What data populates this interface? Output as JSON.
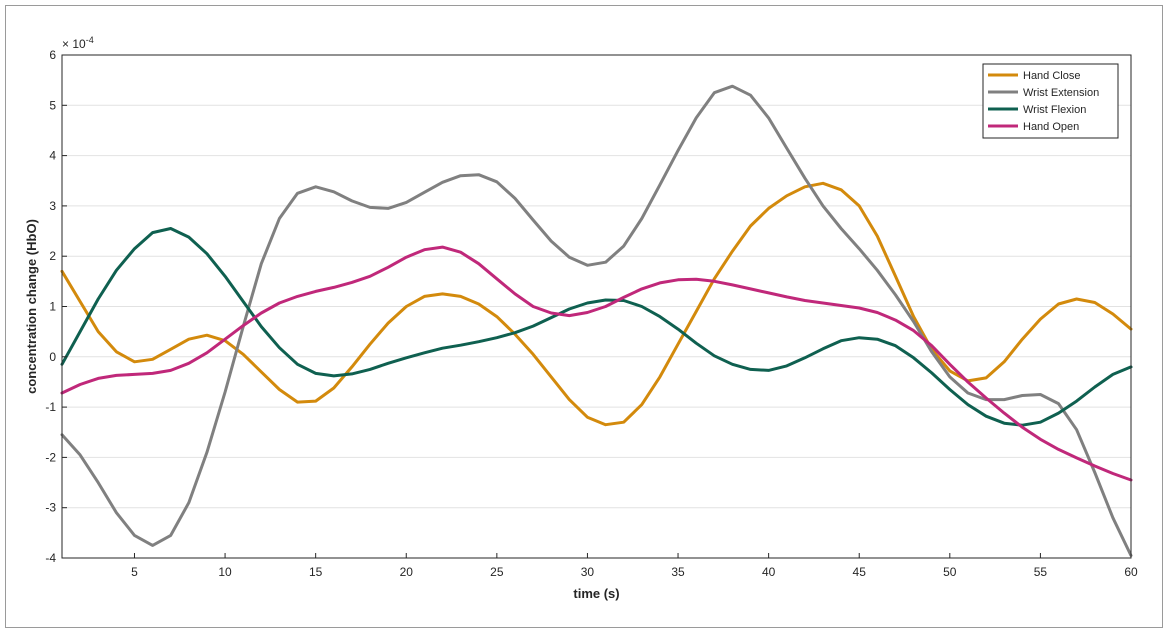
{
  "chart_data": {
    "type": "line",
    "xlabel": "time (s)",
    "ylabel": "concentration change (HbO)",
    "exponent_label": "× 10^-4",
    "xlim": [
      1,
      60
    ],
    "ylim": [
      -4,
      6
    ],
    "xticks": [
      5,
      10,
      15,
      20,
      25,
      30,
      35,
      40,
      45,
      50,
      55,
      60
    ],
    "yticks": [
      -4,
      -3,
      -2,
      -1,
      0,
      1,
      2,
      3,
      4,
      5,
      6
    ],
    "grid": "horizontal",
    "legend_position": "top-right",
    "x": [
      1,
      2,
      3,
      4,
      5,
      6,
      7,
      8,
      9,
      10,
      11,
      12,
      13,
      14,
      15,
      16,
      17,
      18,
      19,
      20,
      21,
      22,
      23,
      24,
      25,
      26,
      27,
      28,
      29,
      30,
      31,
      32,
      33,
      34,
      35,
      36,
      37,
      38,
      39,
      40,
      41,
      42,
      43,
      44,
      45,
      46,
      47,
      48,
      49,
      50,
      51,
      52,
      53,
      54,
      55,
      56,
      57,
      58,
      59,
      60
    ],
    "series": [
      {
        "name": "Hand Close",
        "color": "#d38a0c",
        "values": [
          1.7,
          1.1,
          0.5,
          0.1,
          -0.1,
          -0.05,
          0.15,
          0.35,
          0.43,
          0.32,
          0.05,
          -0.3,
          -0.65,
          -0.9,
          -0.88,
          -0.62,
          -0.2,
          0.25,
          0.67,
          1.0,
          1.2,
          1.25,
          1.2,
          1.05,
          0.8,
          0.45,
          0.05,
          -0.4,
          -0.85,
          -1.2,
          -1.35,
          -1.3,
          -0.95,
          -0.4,
          0.25,
          0.9,
          1.55,
          2.1,
          2.6,
          2.95,
          3.2,
          3.38,
          3.45,
          3.32,
          3.0,
          2.4,
          1.6,
          0.8,
          0.15,
          -0.28,
          -0.48,
          -0.42,
          -0.1,
          0.35,
          0.75,
          1.05,
          1.15,
          1.08,
          0.85,
          0.55
        ]
      },
      {
        "name": "Wrist Extension",
        "color": "#808080",
        "values": [
          -1.55,
          -1.95,
          -2.5,
          -3.1,
          -3.55,
          -3.75,
          -3.55,
          -2.9,
          -1.9,
          -0.7,
          0.6,
          1.85,
          2.75,
          3.25,
          3.38,
          3.28,
          3.1,
          2.97,
          2.95,
          3.07,
          3.27,
          3.47,
          3.6,
          3.62,
          3.48,
          3.15,
          2.72,
          2.3,
          1.98,
          1.82,
          1.88,
          2.2,
          2.75,
          3.42,
          4.1,
          4.75,
          5.25,
          5.38,
          5.2,
          4.75,
          4.15,
          3.55,
          3.0,
          2.55,
          2.15,
          1.72,
          1.23,
          0.7,
          0.1,
          -0.4,
          -0.72,
          -0.85,
          -0.85,
          -0.77,
          -0.75,
          -0.93,
          -1.45,
          -2.3,
          -3.2,
          -3.95
        ]
      },
      {
        "name": "Wrist Flexion",
        "color": "#0f6050",
        "values": [
          -0.15,
          0.5,
          1.15,
          1.72,
          2.15,
          2.47,
          2.55,
          2.38,
          2.05,
          1.6,
          1.1,
          0.6,
          0.18,
          -0.15,
          -0.33,
          -0.38,
          -0.34,
          -0.25,
          -0.13,
          -0.02,
          0.08,
          0.17,
          0.23,
          0.3,
          0.38,
          0.48,
          0.61,
          0.78,
          0.95,
          1.07,
          1.13,
          1.12,
          1.0,
          0.8,
          0.55,
          0.27,
          0.02,
          -0.15,
          -0.25,
          -0.27,
          -0.18,
          -0.02,
          0.16,
          0.32,
          0.38,
          0.35,
          0.22,
          -0.02,
          -0.32,
          -0.65,
          -0.95,
          -1.18,
          -1.32,
          -1.36,
          -1.3,
          -1.12,
          -0.88,
          -0.6,
          -0.35,
          -0.2
        ]
      },
      {
        "name": "Hand Open",
        "color": "#c0287a",
        "values": [
          -0.72,
          -0.55,
          -0.43,
          -0.37,
          -0.35,
          -0.33,
          -0.27,
          -0.13,
          0.08,
          0.35,
          0.62,
          0.87,
          1.07,
          1.2,
          1.3,
          1.38,
          1.48,
          1.6,
          1.78,
          1.98,
          2.13,
          2.18,
          2.08,
          1.85,
          1.55,
          1.25,
          1.0,
          0.87,
          0.82,
          0.88,
          1.0,
          1.18,
          1.35,
          1.47,
          1.53,
          1.54,
          1.5,
          1.43,
          1.35,
          1.27,
          1.19,
          1.12,
          1.07,
          1.02,
          0.97,
          0.88,
          0.73,
          0.52,
          0.22,
          -0.15,
          -0.5,
          -0.82,
          -1.12,
          -1.4,
          -1.64,
          -1.84,
          -2.01,
          -2.17,
          -2.32,
          -2.45
        ]
      }
    ]
  }
}
